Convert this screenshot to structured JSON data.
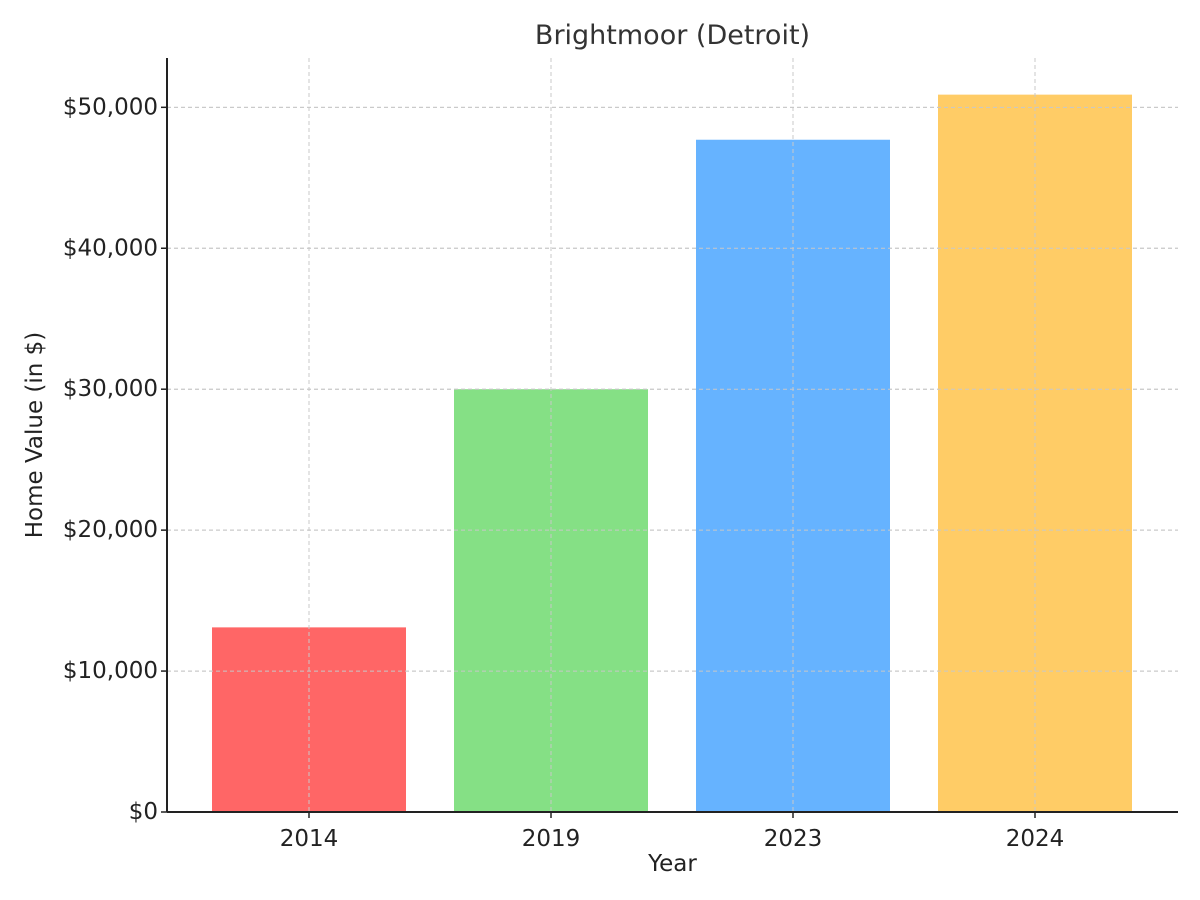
{
  "chart_data": {
    "type": "bar",
    "title": "Brightmoor (Detroit)",
    "xlabel": "Year",
    "ylabel": "Home Value (in $)",
    "categories": [
      "2014",
      "2019",
      "2023",
      "2024"
    ],
    "values": [
      13100,
      30000,
      47700,
      50900
    ],
    "colors": [
      "#ff6666",
      "#85e085",
      "#66b3ff",
      "#ffcc66"
    ],
    "ylim": [
      0,
      53500
    ],
    "yticks": [
      0,
      10000,
      20000,
      30000,
      40000,
      50000
    ],
    "ytick_labels": [
      "$0",
      "$10,000",
      "$20,000",
      "$30,000",
      "$40,000",
      "$50,000"
    ],
    "grid": true,
    "legend": "none"
  }
}
